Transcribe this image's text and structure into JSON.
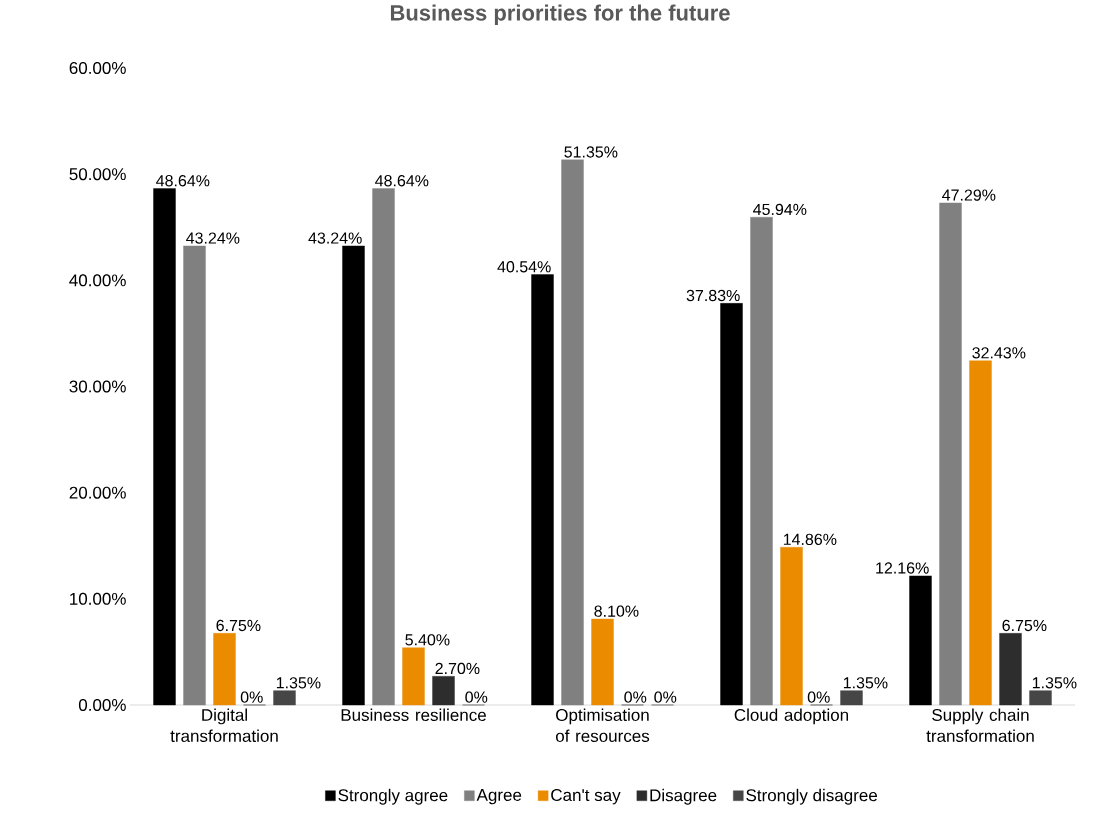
{
  "chart_data": {
    "type": "bar",
    "title": "Business priorities for the future",
    "categories": [
      "Digital transformation",
      "Business resilience",
      "Optimisation of resources",
      "Cloud adoption",
      "Supply chain transformation"
    ],
    "series": [
      {
        "name": "Strongly agree",
        "color": "#000000",
        "values": [
          48.64,
          43.24,
          40.54,
          37.83,
          12.16
        ],
        "value_labels": [
          "48.64%",
          "43.24%",
          "40.54%",
          "37.83%",
          "12.16%"
        ]
      },
      {
        "name": "Agree",
        "color": "#808080",
        "values": [
          43.24,
          48.64,
          51.35,
          45.94,
          47.29
        ],
        "value_labels": [
          "43.24%",
          "48.64%",
          "51.35%",
          "45.94%",
          "47.29%"
        ]
      },
      {
        "name": "Can't say",
        "color": "#eb8c00",
        "values": [
          6.75,
          5.4,
          8.1,
          14.86,
          32.43
        ],
        "value_labels": [
          "6.75%",
          "5.40%",
          "8.10%",
          "14.86%",
          "32.43%"
        ]
      },
      {
        "name": "Disagree",
        "color": "#2d2d2d",
        "values": [
          0,
          2.7,
          0,
          0,
          6.75
        ],
        "value_labels": [
          "0%",
          "2.70%",
          "0%",
          "0%",
          "6.75%"
        ]
      },
      {
        "name": "Strongly disagree",
        "color": "#464646",
        "values": [
          1.35,
          0,
          0,
          1.35,
          1.35
        ],
        "value_labels": [
          "1.35%",
          "0%",
          "0%",
          "1.35%",
          "1.35%"
        ]
      }
    ],
    "ylim": [
      0,
      60
    ],
    "yticks": [
      {
        "value": 0,
        "label": "0.00%"
      },
      {
        "value": 10,
        "label": "10.00%"
      },
      {
        "value": 20,
        "label": "20.00%"
      },
      {
        "value": 30,
        "label": "30.00%"
      },
      {
        "value": 40,
        "label": "40.00%"
      },
      {
        "value": 50,
        "label": "50.00%"
      },
      {
        "value": 60,
        "label": "60.00%"
      }
    ],
    "legend": "bottom"
  }
}
